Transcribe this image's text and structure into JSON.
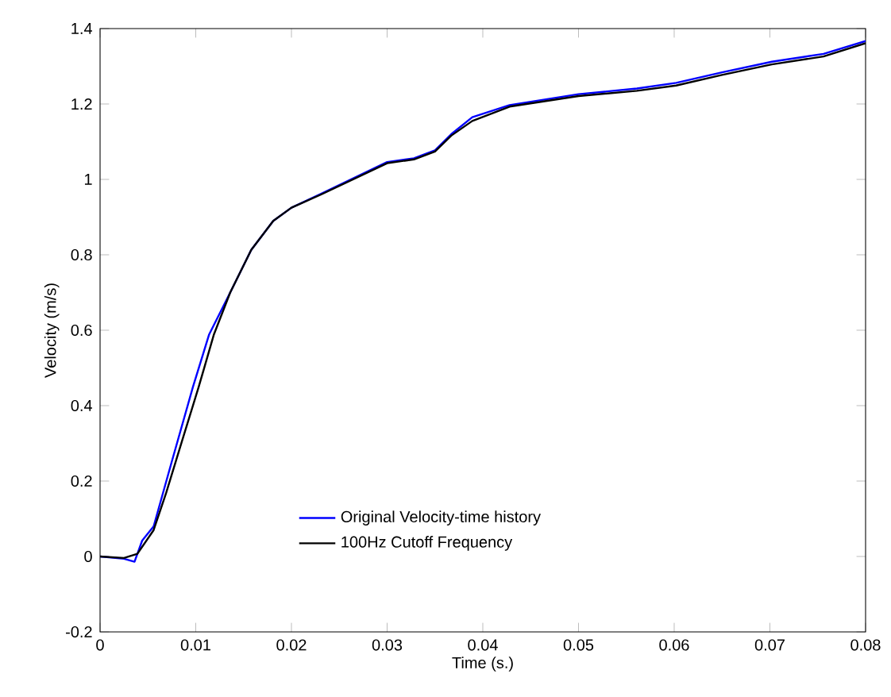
{
  "chart_data": {
    "type": "line",
    "xlabel": "Time (s.)",
    "ylabel": "Velocity (m/s)",
    "xlim": [
      0,
      0.08
    ],
    "ylim": [
      -0.2,
      1.4
    ],
    "xticks": [
      0,
      0.01,
      0.02,
      0.03,
      0.04,
      0.05,
      0.06,
      0.07,
      0.08
    ],
    "yticks": [
      -0.2,
      0,
      0.2,
      0.4,
      0.6,
      0.8,
      1,
      1.2,
      1.4
    ],
    "grid": false,
    "legend": "bottom",
    "marker": "none",
    "line_style": "solid",
    "series": [
      {
        "name": "Original Velocity-time history",
        "color": "#0000ff",
        "x": [
          0,
          0.0025,
          0.0036,
          0.0044,
          0.0056,
          0.0075,
          0.0097,
          0.0114,
          0.0136,
          0.0158,
          0.0181,
          0.02,
          0.0231,
          0.03,
          0.0328,
          0.035,
          0.0367,
          0.0389,
          0.0428,
          0.05,
          0.0561,
          0.0602,
          0.065,
          0.0702,
          0.0756,
          0.08
        ],
        "values": [
          0,
          -0.006,
          -0.014,
          0.042,
          0.08,
          0.252,
          0.449,
          0.589,
          0.7,
          0.813,
          0.89,
          0.925,
          0.962,
          1.046,
          1.056,
          1.077,
          1.12,
          1.165,
          1.197,
          1.226,
          1.241,
          1.256,
          1.284,
          1.312,
          1.333,
          1.367
        ]
      },
      {
        "name": "100Hz Cutoff Frequency",
        "color": "#000000",
        "x": [
          0,
          0.0025,
          0.0039,
          0.0056,
          0.0069,
          0.0086,
          0.0103,
          0.0119,
          0.0136,
          0.0158,
          0.0181,
          0.02,
          0.0231,
          0.03,
          0.0328,
          0.035,
          0.0367,
          0.0389,
          0.0428,
          0.05,
          0.0561,
          0.0602,
          0.065,
          0.0702,
          0.0756,
          0.08
        ],
        "values": [
          0,
          -0.004,
          0.007,
          0.07,
          0.168,
          0.309,
          0.449,
          0.589,
          0.7,
          0.813,
          0.89,
          0.925,
          0.96,
          1.043,
          1.053,
          1.074,
          1.116,
          1.155,
          1.193,
          1.221,
          1.235,
          1.249,
          1.277,
          1.305,
          1.326,
          1.361
        ]
      }
    ]
  }
}
